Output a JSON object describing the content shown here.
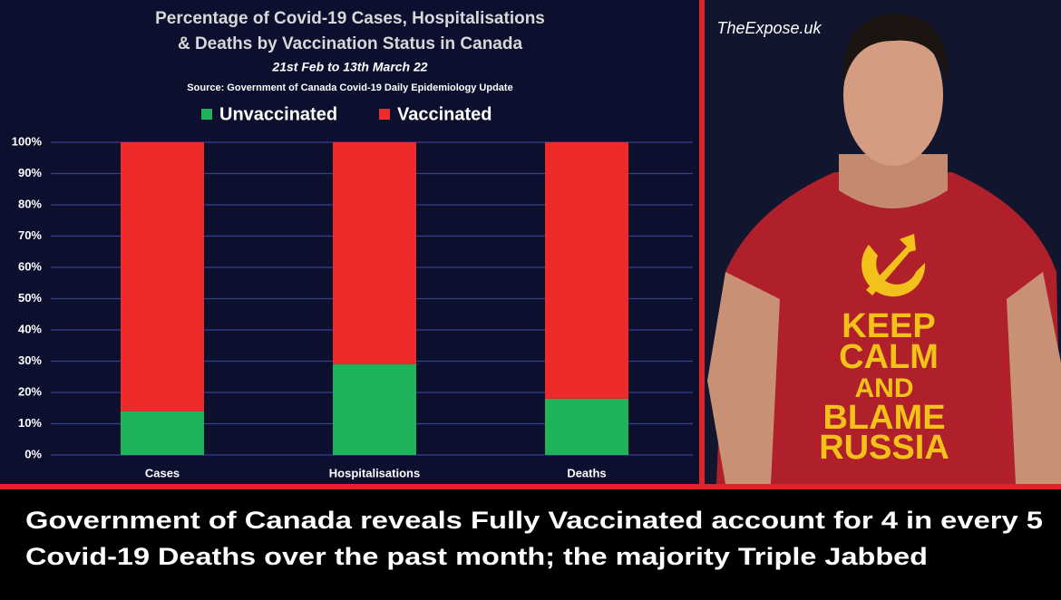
{
  "chart_data": {
    "type": "stacked_bar",
    "title": [
      "Percentage of Covid-19 Cases, Hospitalisations",
      "& Deaths by Vaccination Status in Canada"
    ],
    "subtitle": "21st Feb to 13th March 22",
    "source": "Source: Government of Canada  Covid-19 Daily Epidemiology Update",
    "categories": [
      "Cases",
      "Hospitalisations",
      "Deaths"
    ],
    "series": [
      {
        "name": "Unvaccinated",
        "color": "#1fb35c",
        "values": [
          14,
          29,
          18
        ]
      },
      {
        "name": "Vaccinated",
        "color": "#ee2b2b",
        "values": [
          86,
          71,
          82
        ]
      }
    ],
    "ylim": [
      0,
      100
    ],
    "yticks": [
      {
        "value": 0,
        "label": "0%"
      },
      {
        "value": 10,
        "label": "10%"
      },
      {
        "value": 20,
        "label": "20%"
      },
      {
        "value": 30,
        "label": "30%"
      },
      {
        "value": 40,
        "label": "40%"
      },
      {
        "value": 50,
        "label": "50%"
      },
      {
        "value": 60,
        "label": "60%"
      },
      {
        "value": 70,
        "label": "70%"
      },
      {
        "value": 80,
        "label": "80%"
      },
      {
        "value": 90,
        "label": "90%"
      },
      {
        "value": 100,
        "label": "100%"
      }
    ],
    "grid": true,
    "legend": "top"
  },
  "watermark": "TheExpose.uk",
  "shirt_text": [
    "KEEP",
    "CALM",
    "AND",
    "BLAME",
    "RUSSIA"
  ],
  "caption": [
    "Government of Canada reveals Fully Vaccinated account for 4 in every 5",
    "Covid-19 Deaths over the past month; the majority Triple Jabbed"
  ]
}
